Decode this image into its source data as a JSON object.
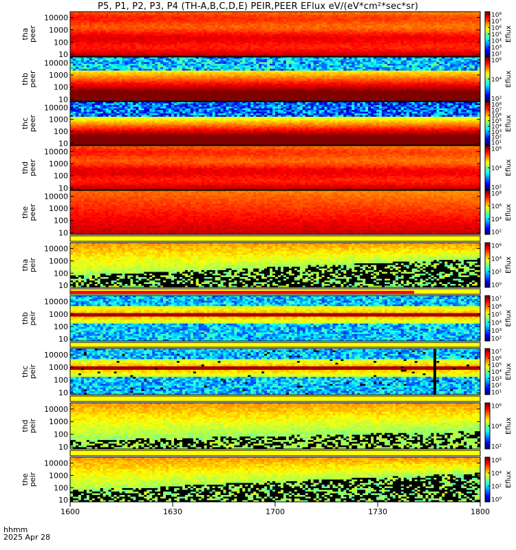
{
  "title": "P5, P1, P2, P3, P4 (TH-A,B,C,D,E) PEIR,PEER EFlux eV/(eV*cm²*sec*sr)",
  "time_axis": {
    "label1": "hhmm",
    "label2": "2025 Apr 28",
    "ticks": [
      "1600",
      "1630",
      "1700",
      "1730",
      "1800"
    ],
    "range": [
      0,
      120
    ]
  },
  "colors": {
    "frame": "#000000",
    "band_yellow": "#ffff00",
    "band_red": "#ff0000"
  },
  "chart_data": [
    {
      "type": "heatmap",
      "ylabel": [
        "tha",
        "peer"
      ],
      "yscale": "log",
      "ylim": [
        7,
        30000
      ],
      "yticks": [
        "10000",
        "1000",
        "100",
        "10"
      ],
      "colorbar": {
        "label": "Eflux",
        "ticks": [
          "10⁸",
          "10⁷",
          "10⁶",
          "10⁵",
          "10⁴",
          "10³",
          "10²"
        ]
      }
    },
    {
      "type": "heatmap",
      "ylabel": [
        "thb",
        "peer"
      ],
      "yscale": "log",
      "ylim": [
        7,
        30000
      ],
      "yticks": [
        "10000",
        "1000",
        "100",
        "10"
      ],
      "colorbar": {
        "label": "Eflux",
        "ticks": [
          "10⁶",
          "10⁴",
          "10²"
        ]
      }
    },
    {
      "type": "heatmap",
      "ylabel": [
        "thc",
        "peer"
      ],
      "yscale": "log",
      "ylim": [
        7,
        30000
      ],
      "yticks": [
        "10000",
        "1000",
        "100",
        "10"
      ],
      "colorbar": {
        "label": "Eflux",
        "ticks": [
          "10⁸",
          "10⁷",
          "10⁶",
          "10⁵",
          "10⁴",
          "10³",
          "10²",
          "10¹"
        ]
      }
    },
    {
      "type": "heatmap",
      "ylabel": [
        "thd",
        "peer"
      ],
      "yscale": "log",
      "ylim": [
        7,
        30000
      ],
      "yticks": [
        "10000",
        "1000",
        "100",
        "10"
      ],
      "colorbar": {
        "label": "Eflux",
        "ticks": [
          "10⁶",
          "10⁴",
          "10²"
        ]
      }
    },
    {
      "type": "heatmap",
      "ylabel": [
        "the",
        "peer"
      ],
      "yscale": "log",
      "ylim": [
        7,
        30000
      ],
      "yticks": [
        "10000",
        "1000",
        "100",
        "10"
      ],
      "colorbar": {
        "label": "Eflux",
        "ticks": [
          "10⁸",
          "10⁶",
          "10⁴",
          "10²"
        ]
      }
    },
    {
      "type": "heatmap",
      "ylabel": [
        "tha",
        "peir"
      ],
      "yscale": "log",
      "ylim": [
        7,
        30000
      ],
      "yticks": [
        "10000",
        "1000",
        "100",
        "10"
      ],
      "colorbar": {
        "label": "Eflux",
        "ticks": [
          "10⁶",
          "10⁴",
          "10²",
          "10⁰"
        ]
      }
    },
    {
      "type": "heatmap",
      "ylabel": [
        "thb",
        "peir"
      ],
      "yscale": "log",
      "ylim": [
        7,
        30000
      ],
      "yticks": [
        "10000",
        "1000",
        "100",
        "10"
      ],
      "colorbar": {
        "label": "Eflux",
        "ticks": [
          "10⁷",
          "10⁶",
          "10⁵",
          "10⁴",
          "10³",
          "10²"
        ]
      }
    },
    {
      "type": "heatmap",
      "ylabel": [
        "thc",
        "peir"
      ],
      "yscale": "log",
      "ylim": [
        7,
        30000
      ],
      "yticks": [
        "10000",
        "1000",
        "100",
        "10"
      ],
      "colorbar": {
        "label": "Eflux",
        "ticks": [
          "10⁷",
          "10⁶",
          "10⁵",
          "10⁴",
          "10³",
          "10²",
          "10¹"
        ]
      }
    },
    {
      "type": "heatmap",
      "ylabel": [
        "thd",
        "peir"
      ],
      "yscale": "log",
      "ylim": [
        7,
        30000
      ],
      "yticks": [
        "10000",
        "1000",
        "100",
        "10"
      ],
      "colorbar": {
        "label": "Eflux",
        "ticks": [
          "10⁶",
          "10⁴",
          "10²"
        ]
      }
    },
    {
      "type": "heatmap",
      "ylabel": [
        "the",
        "peir"
      ],
      "yscale": "log",
      "ylim": [
        7,
        30000
      ],
      "yticks": [
        "10000",
        "1000",
        "100",
        "10"
      ],
      "colorbar": {
        "label": "Eflux",
        "ticks": [
          "10⁶",
          "10⁴",
          "10²",
          "10⁰"
        ]
      }
    }
  ]
}
